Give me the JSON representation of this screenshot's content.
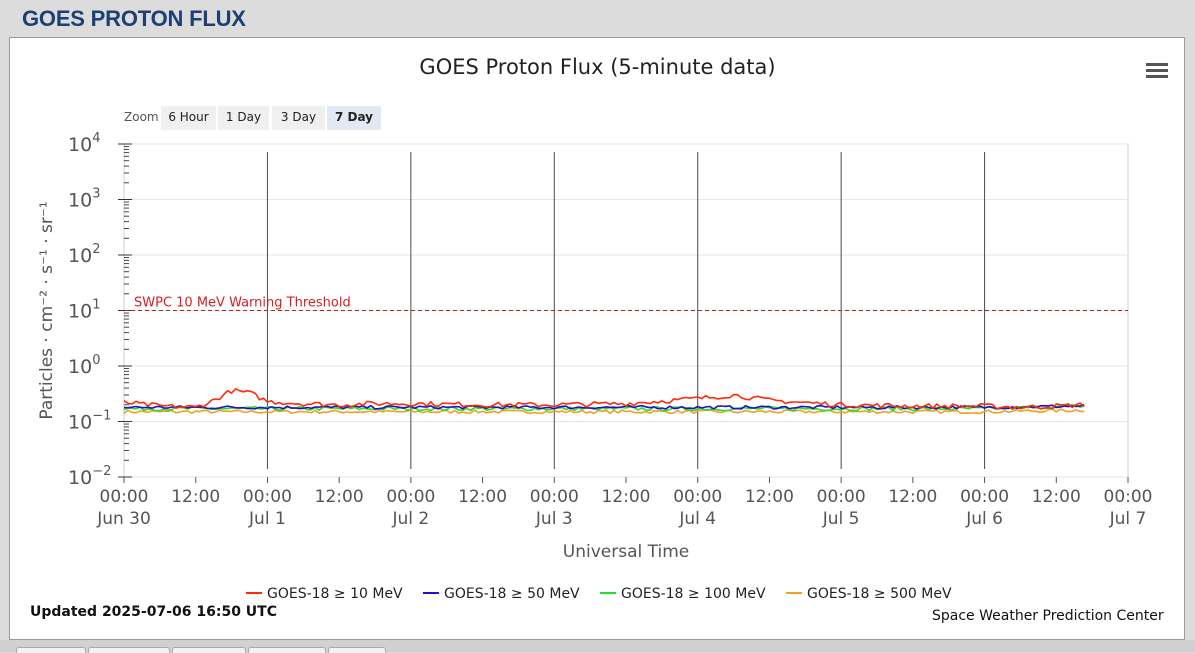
{
  "page": {
    "header": "GOES PROTON FLUX"
  },
  "chart": {
    "title": "GOES Proton Flux (5-minute data)",
    "zoom": {
      "label": "Zoom",
      "buttons": [
        "6 Hour",
        "1 Day",
        "3 Day",
        "7 Day"
      ],
      "active": "7 Day"
    },
    "updated": "Updated 2025-07-06 16:50 UTC",
    "credit": "Space Weather Prediction Center"
  },
  "chart_data": {
    "type": "line",
    "title": "GOES Proton Flux (5-minute data)",
    "xlabel": "Universal Time",
    "ylabel": "Particles · cm⁻² · s⁻¹ · sr⁻¹",
    "y_scale": "log",
    "ylim": [
      0.01,
      10000
    ],
    "xlim": [
      "2025-06-30 00:00",
      "2025-07-07 00:00"
    ],
    "y_ticks": [
      {
        "base": "10",
        "exp": "4"
      },
      {
        "base": "10",
        "exp": "3"
      },
      {
        "base": "10",
        "exp": "2"
      },
      {
        "base": "10",
        "exp": "1"
      },
      {
        "base": "10",
        "exp": "0"
      },
      {
        "base": "10",
        "exp": "−1"
      },
      {
        "base": "10",
        "exp": "−2"
      }
    ],
    "y_tick_values": [
      10000,
      1000,
      100,
      10,
      1,
      0.1,
      0.01
    ],
    "x_ticks": [
      {
        "time": "00:00",
        "date": "Jun 30"
      },
      {
        "time": "12:00",
        "date": ""
      },
      {
        "time": "00:00",
        "date": "Jul 1"
      },
      {
        "time": "12:00",
        "date": ""
      },
      {
        "time": "00:00",
        "date": "Jul 2"
      },
      {
        "time": "12:00",
        "date": ""
      },
      {
        "time": "00:00",
        "date": "Jul 3"
      },
      {
        "time": "12:00",
        "date": ""
      },
      {
        "time": "00:00",
        "date": "Jul 4"
      },
      {
        "time": "12:00",
        "date": ""
      },
      {
        "time": "00:00",
        "date": "Jul 5"
      },
      {
        "time": "12:00",
        "date": ""
      },
      {
        "time": "00:00",
        "date": "Jul 6"
      },
      {
        "time": "12:00",
        "date": ""
      },
      {
        "time": "00:00",
        "date": "Jul 7"
      }
    ],
    "x_tick_values": [
      "2025-06-30 00:00",
      "2025-06-30 12:00",
      "2025-07-01 00:00",
      "2025-07-01 12:00",
      "2025-07-02 00:00",
      "2025-07-02 12:00",
      "2025-07-03 00:00",
      "2025-07-03 12:00",
      "2025-07-04 00:00",
      "2025-07-04 12:00",
      "2025-07-05 00:00",
      "2025-07-05 12:00",
      "2025-07-06 00:00",
      "2025-07-06 12:00",
      "2025-07-07 00:00"
    ],
    "day_lines": [
      "2025-07-01 00:00",
      "2025-07-02 00:00",
      "2025-07-03 00:00",
      "2025-07-04 00:00",
      "2025-07-05 00:00",
      "2025-07-06 00:00"
    ],
    "threshold": {
      "label": "SWPC 10 MeV Warning Threshold",
      "value": 10,
      "color": "#b22222"
    },
    "grid": true,
    "legend_position": "bottom",
    "series": [
      {
        "name": "GOES-18 ≥ 10 MeV",
        "color": "#ff2a0a",
        "x": [
          "2025-06-30 00:00",
          "2025-06-30 06:00",
          "2025-06-30 12:00",
          "2025-06-30 15:00",
          "2025-06-30 18:00",
          "2025-06-30 21:00",
          "2025-07-01 00:00",
          "2025-07-01 06:00",
          "2025-07-01 12:00",
          "2025-07-01 18:00",
          "2025-07-02 00:00",
          "2025-07-02 12:00",
          "2025-07-03 00:00",
          "2025-07-03 12:00",
          "2025-07-04 00:00",
          "2025-07-04 06:00",
          "2025-07-04 12:00",
          "2025-07-05 00:00",
          "2025-07-05 12:00",
          "2025-07-06 00:00",
          "2025-07-06 06:00",
          "2025-07-06 12:00",
          "2025-07-06 16:50"
        ],
        "y": [
          0.22,
          0.19,
          0.18,
          0.24,
          0.36,
          0.33,
          0.23,
          0.21,
          0.2,
          0.21,
          0.21,
          0.2,
          0.2,
          0.21,
          0.26,
          0.3,
          0.24,
          0.2,
          0.19,
          0.19,
          0.18,
          0.19,
          0.2
        ]
      },
      {
        "name": "GOES-18 ≥ 50 MeV",
        "color": "#1f10c9",
        "x": [
          "2025-06-30 00:00",
          "2025-07-01 00:00",
          "2025-07-02 00:00",
          "2025-07-03 00:00",
          "2025-07-04 00:00",
          "2025-07-05 00:00",
          "2025-07-06 00:00",
          "2025-07-06 16:50"
        ],
        "y": [
          0.18,
          0.18,
          0.18,
          0.18,
          0.18,
          0.18,
          0.18,
          0.19
        ]
      },
      {
        "name": "GOES-18 ≥ 100 MeV",
        "color": "#22e022",
        "x": [
          "2025-06-30 00:00",
          "2025-07-01 00:00",
          "2025-07-02 00:00",
          "2025-07-03 00:00",
          "2025-07-04 00:00",
          "2025-07-05 00:00",
          "2025-07-06 00:00",
          "2025-07-06 16:50"
        ],
        "y": [
          0.17,
          0.17,
          0.17,
          0.17,
          0.17,
          0.17,
          0.17,
          0.19
        ]
      },
      {
        "name": "GOES-18 ≥ 500 MeV",
        "color": "#f0a020",
        "x": [
          "2025-06-30 00:00",
          "2025-07-01 00:00",
          "2025-07-02 00:00",
          "2025-07-03 00:00",
          "2025-07-04 00:00",
          "2025-07-05 00:00",
          "2025-07-06 00:00",
          "2025-07-06 16:50"
        ],
        "y": [
          0.15,
          0.15,
          0.15,
          0.15,
          0.15,
          0.15,
          0.15,
          0.16
        ]
      }
    ]
  }
}
